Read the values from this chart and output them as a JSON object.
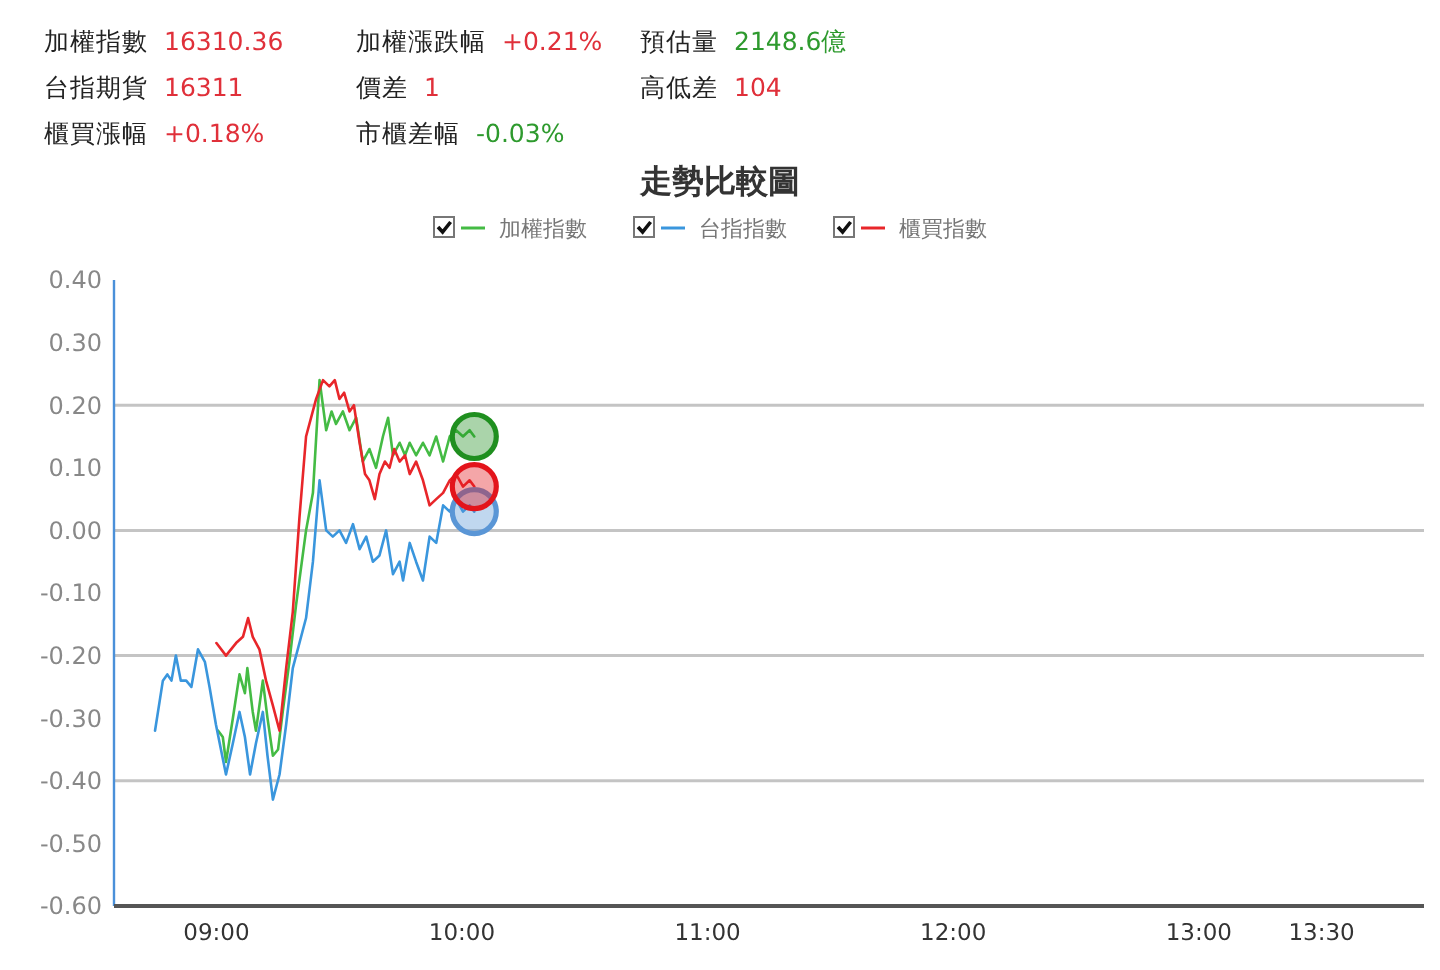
{
  "chart_data": [
    {
      "type": "other",
      "categories": [
        "加權指數",
        "加權漲跌幅",
        "預估量",
        "台指期貨",
        "價差",
        "高低差",
        "櫃買漲幅",
        "市櫃差幅"
      ],
      "value_labels": [
        "16310.36",
        "+0.21%",
        "2148.6億",
        "16311",
        "1",
        "104",
        "+0.18%",
        "-0.03%"
      ],
      "colors": [
        "#e0303a",
        "#e0303a",
        "#2e9a2e",
        "#e0303a",
        "#e0303a",
        "#e0303a",
        "#e0303a",
        "#2e9a2e"
      ]
    },
    {
      "type": "line",
      "title": "走勢比較圖",
      "legend": "top",
      "grid": false,
      "xlim": [
        8.583,
        13.917
      ],
      "xticks": [
        {
          "value": 9,
          "label": "09:00"
        },
        {
          "value": 10,
          "label": "10:00"
        },
        {
          "value": 11,
          "label": "11:00"
        },
        {
          "value": 12,
          "label": "12:00"
        },
        {
          "value": 13,
          "label": "13:00"
        },
        {
          "value": 13.5,
          "label": "13:30"
        }
      ],
      "ylim": [
        -0.6,
        0.4
      ],
      "yticks": [
        {
          "value": -0.6,
          "label": "-0.60"
        },
        {
          "value": -0.5,
          "label": "-0.50"
        },
        {
          "value": -0.4,
          "label": "-0.40"
        },
        {
          "value": -0.3,
          "label": "-0.30"
        },
        {
          "value": -0.2,
          "label": "-0.20"
        },
        {
          "value": -0.1,
          "label": "-0.10"
        },
        {
          "value": 0,
          "label": "0.00"
        },
        {
          "value": 0.1,
          "label": "0.10"
        },
        {
          "value": 0.2,
          "label": "0.20"
        },
        {
          "value": 0.3,
          "label": "0.30"
        },
        {
          "value": 0.4,
          "label": "0.40"
        }
      ],
      "ref_lines": [
        {
          "axis": "y",
          "value": 0.2,
          "color": "#c4c4c4"
        },
        {
          "axis": "y",
          "value": 0,
          "color": "#c4c4c4"
        },
        {
          "axis": "y",
          "value": -0.2,
          "color": "#c4c4c4"
        },
        {
          "axis": "y",
          "value": -0.4,
          "color": "#c4c4c4"
        }
      ],
      "series": [
        {
          "name": "加權指數",
          "color": "#44bb44",
          "x": [
            9.007,
            9.026,
            9.039,
            9.067,
            9.094,
            9.116,
            9.126,
            9.148,
            9.161,
            9.189,
            9.208,
            9.23,
            9.251,
            9.27,
            9.297,
            9.324,
            9.365,
            9.393,
            9.42,
            9.447,
            9.469,
            9.487,
            9.515,
            9.542,
            9.569,
            9.596,
            9.623,
            9.65,
            9.678,
            9.699,
            9.719,
            9.746,
            9.768,
            9.787,
            9.813,
            9.841,
            9.868,
            9.895,
            9.923,
            9.95,
            9.976,
            10.004,
            10.031,
            10.05
          ],
          "values": [
            -0.32,
            -0.33,
            -0.37,
            -0.3,
            -0.23,
            -0.26,
            -0.22,
            -0.29,
            -0.32,
            -0.24,
            -0.3,
            -0.36,
            -0.35,
            -0.29,
            -0.21,
            -0.12,
            0.0,
            0.06,
            0.24,
            0.16,
            0.19,
            0.17,
            0.19,
            0.16,
            0.18,
            0.11,
            0.13,
            0.1,
            0.15,
            0.18,
            0.12,
            0.14,
            0.12,
            0.14,
            0.12,
            0.14,
            0.12,
            0.15,
            0.11,
            0.15,
            0.16,
            0.15,
            0.16,
            0.15
          ]
        },
        {
          "name": "台指指數",
          "color": "#3a96dd",
          "x": [
            8.75,
            8.782,
            8.8,
            8.817,
            8.835,
            8.855,
            8.877,
            8.898,
            8.925,
            8.953,
            8.972,
            8.998,
            9.039,
            9.067,
            9.094,
            9.116,
            9.137,
            9.161,
            9.189,
            9.208,
            9.23,
            9.257,
            9.284,
            9.311,
            9.365,
            9.393,
            9.42,
            9.447,
            9.474,
            9.501,
            9.528,
            9.556,
            9.583,
            9.61,
            9.637,
            9.664,
            9.691,
            9.719,
            9.746,
            9.76,
            9.787,
            9.813,
            9.841,
            9.868,
            9.895,
            9.923,
            9.95,
            9.976,
            10.004,
            10.031,
            10.05
          ],
          "values": [
            -0.32,
            -0.24,
            -0.23,
            -0.24,
            -0.2,
            -0.24,
            -0.24,
            -0.25,
            -0.19,
            -0.21,
            -0.25,
            -0.31,
            -0.39,
            -0.34,
            -0.29,
            -0.33,
            -0.39,
            -0.34,
            -0.29,
            -0.36,
            -0.43,
            -0.39,
            -0.31,
            -0.22,
            -0.14,
            -0.05,
            0.08,
            0.0,
            -0.01,
            0.0,
            -0.02,
            0.01,
            -0.03,
            -0.01,
            -0.05,
            -0.04,
            0.0,
            -0.07,
            -0.05,
            -0.08,
            -0.02,
            -0.05,
            -0.08,
            -0.01,
            -0.02,
            0.04,
            0.03,
            0.05,
            0.03,
            0.04,
            0.03
          ]
        },
        {
          "name": "櫃買指數",
          "color": "#e8262a",
          "x": [
            9.0,
            9.039,
            9.08,
            9.108,
            9.129,
            9.148,
            9.175,
            9.202,
            9.23,
            9.257,
            9.284,
            9.311,
            9.338,
            9.365,
            9.406,
            9.434,
            9.46,
            9.482,
            9.501,
            9.52,
            9.542,
            9.56,
            9.583,
            9.605,
            9.623,
            9.645,
            9.664,
            9.686,
            9.705,
            9.724,
            9.746,
            9.768,
            9.787,
            9.813,
            9.841,
            9.868,
            9.895,
            9.923,
            9.95,
            9.976,
            10.004,
            10.031,
            10.05
          ],
          "values": [
            -0.18,
            -0.2,
            -0.18,
            -0.17,
            -0.14,
            -0.17,
            -0.19,
            -0.24,
            -0.28,
            -0.32,
            -0.22,
            -0.13,
            0.02,
            0.15,
            0.21,
            0.24,
            0.23,
            0.24,
            0.21,
            0.22,
            0.19,
            0.2,
            0.14,
            0.09,
            0.08,
            0.05,
            0.09,
            0.11,
            0.1,
            0.13,
            0.11,
            0.12,
            0.09,
            0.11,
            0.08,
            0.04,
            0.05,
            0.06,
            0.08,
            0.09,
            0.07,
            0.08,
            0.07
          ]
        },
        {
          "type": "scatter",
          "color": "#5a96d6",
          "x": [
            10.05
          ],
          "values": [
            0.03
          ]
        },
        {
          "type": "scatter",
          "color": "#1f8f1f",
          "x": [
            10.05
          ],
          "values": [
            0.15
          ]
        },
        {
          "type": "scatter",
          "color": "#e3141b",
          "x": [
            10.05
          ],
          "values": [
            0.07
          ]
        }
      ]
    }
  ]
}
